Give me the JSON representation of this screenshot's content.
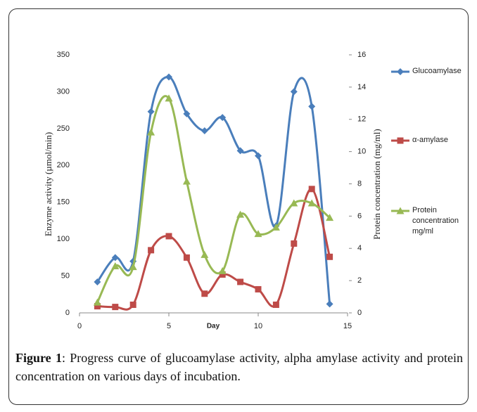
{
  "chart_data": {
    "type": "line",
    "x": [
      1,
      2,
      3,
      4,
      5,
      6,
      7,
      8,
      9,
      10,
      11,
      12,
      13,
      14
    ],
    "xlabel": "Day",
    "ylabel": "Enzyme activity  (µmol/min)",
    "y2label": "Protein concentration  (mg/ml)",
    "xlim": [
      0,
      15
    ],
    "xticks": [
      0,
      5,
      10,
      15
    ],
    "ylim": [
      0,
      350
    ],
    "yticks": [
      0,
      50,
      100,
      150,
      200,
      250,
      300,
      350
    ],
    "y2lim": [
      0,
      16
    ],
    "y2ticks": [
      0,
      2,
      4,
      6,
      8,
      10,
      12,
      14,
      16
    ],
    "series": [
      {
        "name": "Glucoamylase",
        "color": "#4a7ebb",
        "marker": "diamond",
        "values": [
          42,
          75,
          70,
          273,
          320,
          270,
          247,
          265,
          220,
          213,
          118,
          300,
          280,
          12
        ]
      },
      {
        "name": "α-amylase",
        "color": "#be4b48",
        "marker": "square",
        "values": [
          9,
          8,
          11,
          85,
          104,
          75,
          26,
          52,
          42,
          32,
          11,
          94,
          168,
          76
        ]
      },
      {
        "name": "Protein concentration mg/ml",
        "color": "#98b954",
        "marker": "triangle",
        "axis": "y2",
        "values": [
          0.65,
          2.9,
          2.85,
          11.2,
          13.3,
          8.15,
          3.6,
          2.6,
          6.1,
          4.9,
          5.3,
          6.8,
          6.8,
          5.9
        ]
      }
    ]
  },
  "caption": {
    "label": "Figure 1",
    "text": ": Progress curve of glucoamylase activity, alpha amylase activity and protein concentration on various days of incubation."
  }
}
